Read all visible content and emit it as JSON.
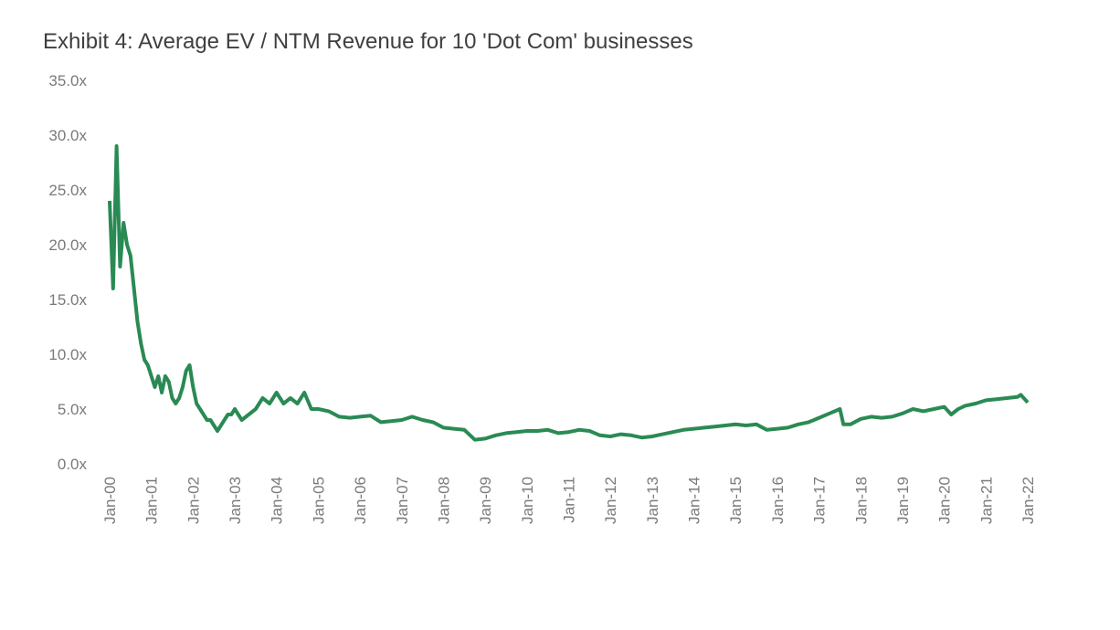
{
  "chart_data": {
    "type": "line",
    "title": "Exhibit 4: Average EV / NTM Revenue for 10 'Dot Com' businesses",
    "x": [
      "Jan-00",
      "Feb-00",
      "Mar-00",
      "Apr-00",
      "May-00",
      "Jun-00",
      "Jul-00",
      "Aug-00",
      "Sep-00",
      "Oct-00",
      "Nov-00",
      "Dec-00",
      "Jan-01",
      "Feb-01",
      "Mar-01",
      "Apr-01",
      "May-01",
      "Jun-01",
      "Jul-01",
      "Aug-01",
      "Sep-01",
      "Oct-01",
      "Nov-01",
      "Dec-01",
      "Jan-02",
      "Feb-02",
      "Mar-02",
      "Apr-02",
      "May-02",
      "Jun-02",
      "Jul-02",
      "Aug-02",
      "Sep-02",
      "Oct-02",
      "Nov-02",
      "Dec-02",
      "Jan-03",
      "Mar-03",
      "May-03",
      "Jul-03",
      "Sep-03",
      "Nov-03",
      "Jan-04",
      "Mar-04",
      "May-04",
      "Jul-04",
      "Sep-04",
      "Nov-04",
      "Jan-05",
      "Apr-05",
      "Jul-05",
      "Oct-05",
      "Jan-06",
      "Apr-06",
      "Jul-06",
      "Oct-06",
      "Jan-07",
      "Apr-07",
      "Jul-07",
      "Oct-07",
      "Jan-08",
      "Apr-08",
      "Jul-08",
      "Oct-08",
      "Jan-09",
      "Apr-09",
      "Jul-09",
      "Oct-09",
      "Jan-10",
      "Apr-10",
      "Jul-10",
      "Oct-10",
      "Jan-11",
      "Apr-11",
      "Jul-11",
      "Oct-11",
      "Jan-12",
      "Apr-12",
      "Jul-12",
      "Oct-12",
      "Jan-13",
      "Apr-13",
      "Jul-13",
      "Oct-13",
      "Jan-14",
      "Apr-14",
      "Jul-14",
      "Oct-14",
      "Jan-15",
      "Apr-15",
      "Jul-15",
      "Oct-15",
      "Jan-16",
      "Apr-16",
      "Jul-16",
      "Oct-16",
      "Jan-17",
      "Apr-17",
      "Jul-17",
      "Aug-17",
      "Oct-17",
      "Jan-18",
      "Apr-18",
      "Jul-18",
      "Oct-18",
      "Jan-19",
      "Apr-19",
      "Jul-19",
      "Oct-19",
      "Jan-20",
      "Mar-20",
      "May-20",
      "Jul-20",
      "Oct-20",
      "Jan-21",
      "Apr-21",
      "Jul-21",
      "Oct-21",
      "Nov-21",
      "Jan-22"
    ],
    "series": [
      {
        "color": "#2a8a54",
        "values": [
          24,
          16,
          29,
          18,
          22,
          20,
          19,
          16,
          13,
          11,
          9.5,
          9,
          8,
          7,
          8,
          6.5,
          8,
          7.5,
          6,
          5.5,
          6,
          7,
          8.5,
          9,
          7,
          5.5,
          5,
          4.5,
          4,
          4,
          3.5,
          3,
          3.5,
          4,
          4.5,
          4.5,
          5,
          4,
          4.5,
          5,
          6,
          5.5,
          6.5,
          5.5,
          6,
          5.5,
          6.5,
          5,
          5,
          4.8,
          4.3,
          4.2,
          4.3,
          4.4,
          3.8,
          3.9,
          4,
          4.3,
          4,
          3.8,
          3.3,
          3.2,
          3.1,
          2.2,
          2.3,
          2.6,
          2.8,
          2.9,
          3,
          3,
          3.1,
          2.8,
          2.9,
          3.1,
          3,
          2.6,
          2.5,
          2.7,
          2.6,
          2.4,
          2.5,
          2.7,
          2.9,
          3.1,
          3.2,
          3.3,
          3.4,
          3.5,
          3.6,
          3.5,
          3.6,
          3.1,
          3.2,
          3.3,
          3.6,
          3.8,
          4.2,
          4.6,
          5,
          3.6,
          3.6,
          4.1,
          4.3,
          4.2,
          4.3,
          4.6,
          5,
          4.8,
          5,
          5.2,
          4.5,
          5,
          5.3,
          5.5,
          5.8,
          5.9,
          6,
          6.1,
          6.3,
          5.6
        ]
      }
    ],
    "ylim": [
      0,
      35
    ],
    "yticks": [
      {
        "value": 0,
        "label": "0.0x"
      },
      {
        "value": 5,
        "label": "5.0x"
      },
      {
        "value": 10,
        "label": "10.0x"
      },
      {
        "value": 15,
        "label": "15.0x"
      },
      {
        "value": 20,
        "label": "20.0x"
      },
      {
        "value": 25,
        "label": "25.0x"
      },
      {
        "value": 30,
        "label": "30.0x"
      },
      {
        "value": 35,
        "label": "35.0x"
      }
    ],
    "xticks": [
      "Jan-00",
      "Jan-01",
      "Jan-02",
      "Jan-03",
      "Jan-04",
      "Jan-05",
      "Jan-06",
      "Jan-07",
      "Jan-08",
      "Jan-09",
      "Jan-10",
      "Jan-11",
      "Jan-12",
      "Jan-13",
      "Jan-14",
      "Jan-15",
      "Jan-16",
      "Jan-17",
      "Jan-18",
      "Jan-19",
      "Jan-20",
      "Jan-21",
      "Jan-22"
    ]
  }
}
